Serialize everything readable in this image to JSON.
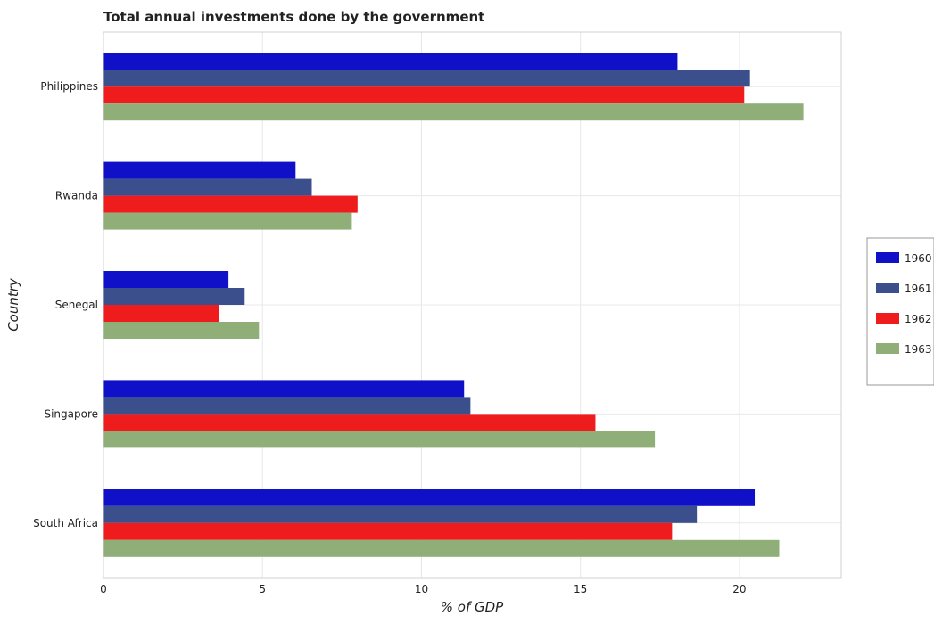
{
  "chart_data": {
    "type": "bar",
    "orientation": "horizontal",
    "title": "Total annual investments done by the government",
    "xlabel": "% of GDP",
    "ylabel": "Country",
    "categories": [
      "Philippines",
      "Rwanda",
      "Senegal",
      "Singapore",
      "South Africa"
    ],
    "series": [
      {
        "name": "1960",
        "color": "#1010c8",
        "values": [
          18.05,
          6.04,
          3.93,
          11.34,
          20.48
        ]
      },
      {
        "name": "1961",
        "color": "#3a4f8c",
        "values": [
          20.33,
          6.55,
          4.44,
          11.54,
          18.66
        ]
      },
      {
        "name": "1962",
        "color": "#ee1c1c",
        "values": [
          20.15,
          7.99,
          3.64,
          15.47,
          17.88
        ]
      },
      {
        "name": "1963",
        "color": "#8fae78",
        "values": [
          22.01,
          7.81,
          4.89,
          17.34,
          21.25
        ]
      }
    ],
    "xlim": [
      0,
      23.2
    ],
    "xticks": [
      0,
      5,
      10,
      15,
      20
    ],
    "grid": true,
    "legend_position": "right"
  }
}
